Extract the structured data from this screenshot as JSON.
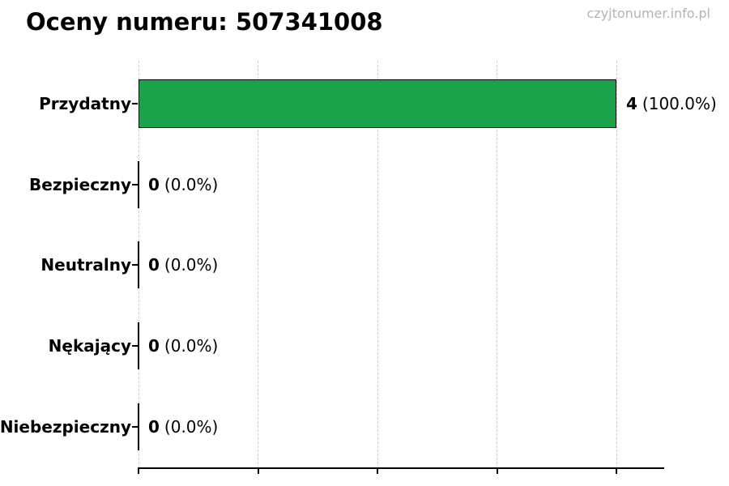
{
  "header": {
    "title": "Oceny numeru: 507341008",
    "watermark": "czyjtonumer.info.pl"
  },
  "chart_data": {
    "type": "bar",
    "orientation": "horizontal",
    "title": "Oceny numeru: 507341008",
    "categories": [
      "Przydatny",
      "Bezpieczny",
      "Neutralny",
      "Nękający",
      "Niebezpieczny"
    ],
    "values": [
      4,
      0,
      0,
      0,
      0
    ],
    "percent_labels": [
      "(100.0%)",
      "(0.0%)",
      "(0.0%)",
      "(0.0%)",
      "(0.0%)"
    ],
    "value_label_texts": [
      "4 (100.0%)",
      "0 (0.0%)",
      "0 (0.0%)",
      "0 (0.0%)",
      "0 (0.0%)"
    ],
    "xlim": [
      0,
      4.4
    ],
    "x_ticks": [
      0,
      1,
      2,
      3,
      4
    ],
    "x_tick_labels": [],
    "xlabel": "",
    "ylabel": "",
    "legend": "none",
    "grid": "vertical-dashed",
    "colors": {
      "bar_fill": "#1aa34a",
      "bar_edge": "#000000",
      "grid_line": "#cfcfcf",
      "axis_line": "#000000",
      "title_text": "#000000",
      "watermark_text": "#b3b3b3"
    }
  }
}
